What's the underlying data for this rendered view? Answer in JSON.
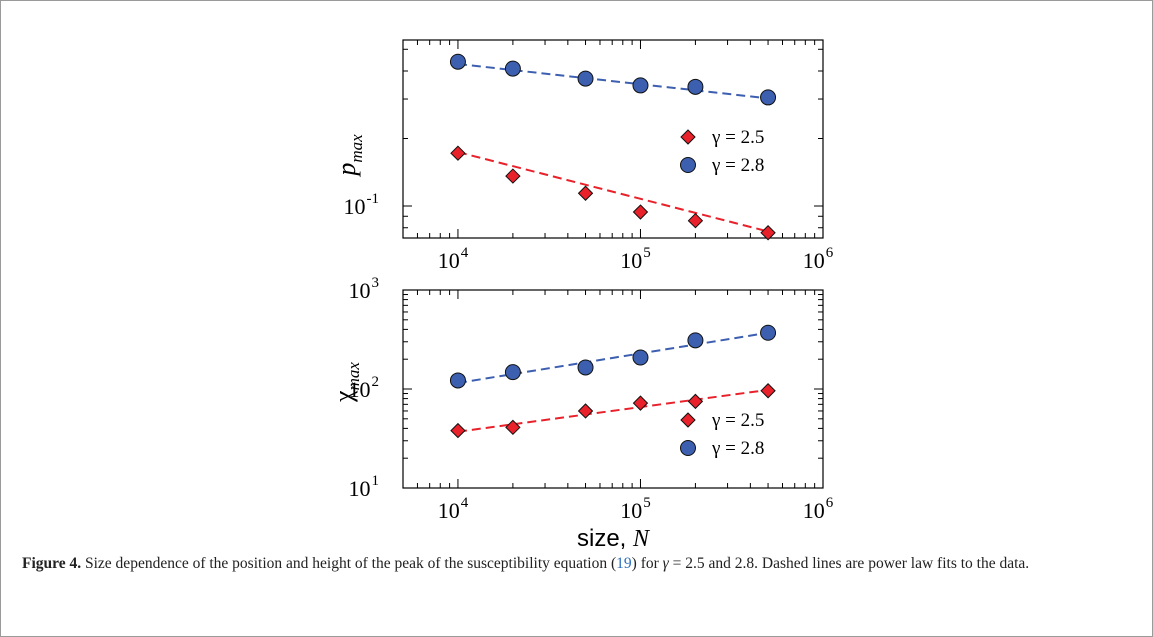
{
  "chart_data": [
    {
      "type": "scatter",
      "title": "",
      "ylabel_base": "p",
      "ylabel_sub": "max",
      "xscale": "log",
      "yscale": "log",
      "xlim": [
        5000,
        1000000
      ],
      "ylim": [
        0.072,
        0.55
      ],
      "x_ticks": [
        {
          "base": "10",
          "exp": "4"
        },
        {
          "base": "10",
          "exp": "5"
        },
        {
          "base": "10",
          "exp": "6"
        }
      ],
      "y_ticks": [
        {
          "base": "10",
          "exp": "-1"
        }
      ],
      "legend": "right",
      "series": [
        {
          "name": "γ = 2.5",
          "marker": "diamond",
          "color": "#e8212b",
          "x": [
            10000,
            20000,
            50000,
            100000,
            200000,
            500000
          ],
          "y": [
            0.172,
            0.136,
            0.114,
            0.094,
            0.086,
            0.076
          ],
          "fit": [
            0.174,
            0.077
          ]
        },
        {
          "name": "γ = 2.8",
          "marker": "circle",
          "color": "#3d5fb0",
          "x": [
            10000,
            20000,
            50000,
            100000,
            200000,
            500000
          ],
          "y": [
            0.44,
            0.41,
            0.37,
            0.345,
            0.34,
            0.305
          ],
          "fit": [
            0.43,
            0.302
          ]
        }
      ]
    },
    {
      "type": "scatter",
      "title": "",
      "ylabel_base": "χ",
      "ylabel_sub": "max",
      "xlabel_text": "size, ",
      "xlabel_var": "N",
      "xscale": "log",
      "yscale": "log",
      "xlim": [
        5000,
        1000000
      ],
      "ylim": [
        10,
        1000
      ],
      "x_ticks": [
        {
          "base": "10",
          "exp": "4"
        },
        {
          "base": "10",
          "exp": "5"
        },
        {
          "base": "10",
          "exp": "6"
        }
      ],
      "y_ticks": [
        {
          "base": "10",
          "exp": "1"
        },
        {
          "base": "10",
          "exp": "2"
        },
        {
          "base": "10",
          "exp": "3"
        }
      ],
      "legend": "bottom-right",
      "series": [
        {
          "name": "γ = 2.5",
          "marker": "diamond",
          "color": "#e8212b",
          "x": [
            10000,
            20000,
            50000,
            100000,
            200000,
            500000
          ],
          "y": [
            38,
            41,
            60,
            72,
            75,
            96
          ],
          "fit": [
            37,
            98
          ]
        },
        {
          "name": "γ = 2.8",
          "marker": "circle",
          "color": "#3d5fb0",
          "x": [
            10000,
            20000,
            50000,
            100000,
            200000,
            500000
          ],
          "y": [
            122,
            148,
            165,
            208,
            310,
            370
          ],
          "fit": [
            115,
            370
          ]
        }
      ]
    }
  ],
  "caption": {
    "label": "Figure 4.",
    "text1": " Size dependence of the position and height of the peak of the susceptibility equation (",
    "ref": "19",
    "text2": ") for ",
    "gamma": "γ",
    "text3": " = 2.5 and 2.8. Dashed lines are power law fits to the data."
  }
}
